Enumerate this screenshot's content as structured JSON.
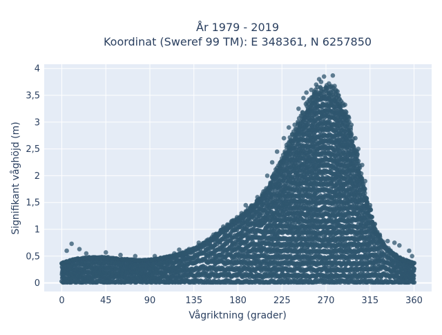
{
  "chart_data": {
    "type": "scatter",
    "title_line1": "År 1979 - 2019",
    "title_line2": "Koordinat (Sweref 99 TM): E 348361, N 6257850",
    "xlabel": "Vågriktning (grader)",
    "ylabel": "Signifikant våghöjd (m)",
    "xlim": [
      -18,
      378
    ],
    "ylim": [
      -0.16,
      4.08
    ],
    "x_ticks": [
      0,
      45,
      90,
      135,
      180,
      225,
      270,
      315,
      360
    ],
    "x_tick_labels": [
      "0",
      "45",
      "90",
      "135",
      "180",
      "225",
      "270",
      "315",
      "360"
    ],
    "y_ticks": [
      0,
      0.5,
      1,
      1.5,
      2,
      2.5,
      3,
      3.5,
      4
    ],
    "y_tick_labels": [
      "0",
      "0,5",
      "1",
      "1,5",
      "2",
      "2,5",
      "3",
      "3,5",
      "4"
    ],
    "grid": true,
    "colors": {
      "marker": "#2f566e",
      "plot_background": "#e5ecf6",
      "grid": "#ffffff"
    },
    "envelope": {
      "x": [
        0,
        15,
        30,
        45,
        60,
        75,
        90,
        105,
        120,
        135,
        150,
        165,
        180,
        195,
        210,
        225,
        240,
        250,
        260,
        270,
        280,
        290,
        300,
        310,
        320,
        330,
        340,
        350,
        360
      ],
      "upper": [
        0.35,
        0.42,
        0.45,
        0.45,
        0.42,
        0.4,
        0.4,
        0.45,
        0.5,
        0.6,
        0.75,
        0.95,
        1.15,
        1.35,
        1.65,
        2.2,
        2.75,
        3.15,
        3.4,
        3.45,
        3.4,
        3.05,
        2.4,
        1.6,
        0.95,
        0.65,
        0.5,
        0.4,
        0.35
      ],
      "lower": [
        0.02,
        0.02,
        0.02,
        0.02,
        0.02,
        0.02,
        0.02,
        0.02,
        0.02,
        0.02,
        0.02,
        0.02,
        0.02,
        0.02,
        0.02,
        0.02,
        0.02,
        0.02,
        0.02,
        0.02,
        0.02,
        0.02,
        0.02,
        0.02,
        0.02,
        0.02,
        0.02,
        0.02,
        0.02
      ]
    },
    "outlier_points": [
      {
        "x": 10,
        "y": 0.73
      },
      {
        "x": 5,
        "y": 0.6
      },
      {
        "x": 18,
        "y": 0.63
      },
      {
        "x": 25,
        "y": 0.55
      },
      {
        "x": 45,
        "y": 0.57
      },
      {
        "x": 60,
        "y": 0.52
      },
      {
        "x": 75,
        "y": 0.5
      },
      {
        "x": 95,
        "y": 0.5
      },
      {
        "x": 115,
        "y": 0.55
      },
      {
        "x": 120,
        "y": 0.62
      },
      {
        "x": 130,
        "y": 0.63
      },
      {
        "x": 140,
        "y": 0.75
      },
      {
        "x": 155,
        "y": 0.9
      },
      {
        "x": 165,
        "y": 1.05
      },
      {
        "x": 175,
        "y": 1.15
      },
      {
        "x": 188,
        "y": 1.45
      },
      {
        "x": 200,
        "y": 1.6
      },
      {
        "x": 210,
        "y": 2.0
      },
      {
        "x": 215,
        "y": 2.25
      },
      {
        "x": 220,
        "y": 2.45
      },
      {
        "x": 227,
        "y": 2.7
      },
      {
        "x": 232,
        "y": 2.9
      },
      {
        "x": 238,
        "y": 2.95
      },
      {
        "x": 242,
        "y": 3.25
      },
      {
        "x": 247,
        "y": 3.45
      },
      {
        "x": 250,
        "y": 3.55
      },
      {
        "x": 253,
        "y": 3.4
      },
      {
        "x": 255,
        "y": 3.6
      },
      {
        "x": 258,
        "y": 3.5
      },
      {
        "x": 260,
        "y": 3.7
      },
      {
        "x": 262,
        "y": 3.55
      },
      {
        "x": 263,
        "y": 3.8
      },
      {
        "x": 265,
        "y": 3.75
      },
      {
        "x": 268,
        "y": 3.85
      },
      {
        "x": 270,
        "y": 3.65
      },
      {
        "x": 273,
        "y": 3.72
      },
      {
        "x": 275,
        "y": 3.55
      },
      {
        "x": 277,
        "y": 3.87
      },
      {
        "x": 280,
        "y": 3.6
      },
      {
        "x": 283,
        "y": 3.5
      },
      {
        "x": 287,
        "y": 3.35
      },
      {
        "x": 290,
        "y": 3.2
      },
      {
        "x": 293,
        "y": 3.1
      },
      {
        "x": 296,
        "y": 2.95
      },
      {
        "x": 300,
        "y": 2.7
      },
      {
        "x": 303,
        "y": 2.5
      },
      {
        "x": 307,
        "y": 2.2
      },
      {
        "x": 310,
        "y": 1.9
      },
      {
        "x": 315,
        "y": 1.45
      },
      {
        "x": 320,
        "y": 1.1
      },
      {
        "x": 325,
        "y": 0.9
      },
      {
        "x": 333,
        "y": 0.78
      },
      {
        "x": 340,
        "y": 0.75
      },
      {
        "x": 345,
        "y": 0.7
      },
      {
        "x": 355,
        "y": 0.6
      },
      {
        "x": 358,
        "y": 0.5
      }
    ]
  }
}
